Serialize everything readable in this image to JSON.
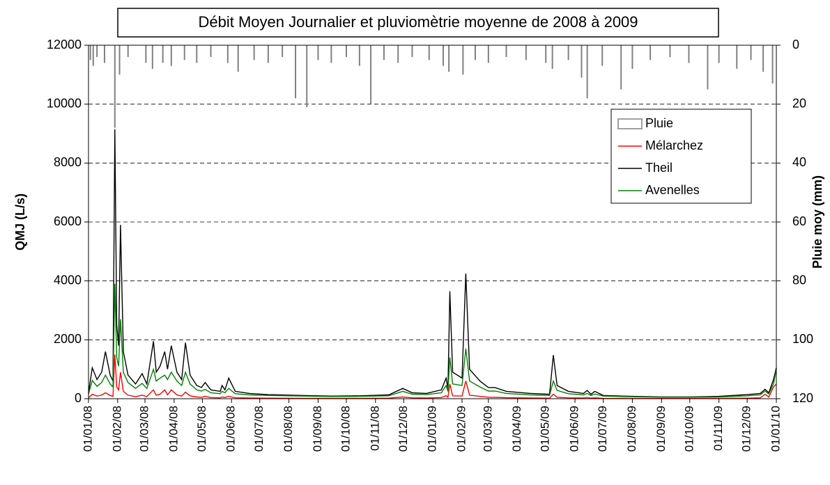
{
  "chart_data": {
    "type": "line",
    "title": "Débit Moyen Journalier et pluviomètrie moyenne de 2008 à 2009",
    "y_label": "QMJ (L/s)",
    "y2_label": "Pluie moy (mm)",
    "xlim": [
      "01/01/08",
      "01/01/10"
    ],
    "xticks": [
      "01/01/08",
      "01/02/08",
      "01/03/08",
      "01/04/08",
      "01/05/08",
      "01/06/08",
      "01/07/08",
      "01/08/08",
      "01/09/08",
      "01/10/08",
      "01/11/08",
      "01/12/08",
      "01/01/09",
      "01/02/09",
      "01/03/09",
      "01/04/09",
      "01/05/09",
      "01/06/09",
      "01/07/09",
      "01/08/09",
      "01/09/09",
      "01/10/09",
      "01/11/09",
      "01/12/09",
      "01/01/10"
    ],
    "ylim": [
      0,
      12000
    ],
    "yticks": [
      0,
      2000,
      4000,
      6000,
      8000,
      10000,
      12000
    ],
    "y2lim": [
      120,
      0
    ],
    "y2ticks": [
      0,
      20,
      40,
      60,
      80,
      100,
      120
    ],
    "grid": true,
    "legend": "upper right",
    "x": [
      "01/01/08",
      "05/01/08",
      "10/01/08",
      "15/01/08",
      "19/01/08",
      "24/01/08",
      "27/01/08",
      "29/01/08",
      "31/01/08",
      "02/02/08",
      "04/02/08",
      "07/02/08",
      "12/02/08",
      "20/02/08",
      "27/02/08",
      "03/03/08",
      "10/03/08",
      "13/03/08",
      "17/03/08",
      "22/03/08",
      "25/03/08",
      "29/03/08",
      "04/04/08",
      "09/04/08",
      "13/04/08",
      "18/04/08",
      "25/04/08",
      "30/04/08",
      "04/05/08",
      "10/05/08",
      "20/05/08",
      "22/05/08",
      "25/05/08",
      "29/05/08",
      "05/06/08",
      "20/06/08",
      "10/07/08",
      "15/08/08",
      "15/09/08",
      "15/10/08",
      "15/11/08",
      "30/11/08",
      "10/12/08",
      "25/12/08",
      "10/01/09",
      "15/01/09",
      "17/01/09",
      "19/01/09",
      "22/01/09",
      "01/02/09",
      "05/02/09",
      "09/02/09",
      "20/02/09",
      "01/03/09",
      "08/03/09",
      "20/03/09",
      "15/04/09",
      "05/05/09",
      "09/05/09",
      "13/05/09",
      "25/05/09",
      "10/06/09",
      "14/06/09",
      "18/06/09",
      "22/06/09",
      "01/07/09",
      "01/08/09",
      "01/09/09",
      "01/10/09",
      "01/11/09",
      "01/12/09",
      "15/12/09",
      "20/12/09",
      "24/12/09",
      "29/12/09",
      "01/01/10"
    ],
    "series": [
      {
        "name": "Pluie",
        "type": "bar",
        "axis": "y2",
        "color": "#808080",
        "x": [
          "03/01/08",
          "06/01/08",
          "10/01/08",
          "18/01/08",
          "29/01/08",
          "03/02/08",
          "12/02/08",
          "02/03/08",
          "09/03/08",
          "20/03/08",
          "29/03/08",
          "12/04/08",
          "25/04/08",
          "10/05/08",
          "28/05/08",
          "08/06/08",
          "25/06/08",
          "10/07/08",
          "25/07/08",
          "08/08/08",
          "20/08/08",
          "01/09/08",
          "15/09/08",
          "01/10/08",
          "15/10/08",
          "27/10/08",
          "10/11/08",
          "25/11/08",
          "10/12/08",
          "28/12/08",
          "12/01/09",
          "18/01/09",
          "02/02/09",
          "15/02/09",
          "01/03/09",
          "20/03/09",
          "10/04/09",
          "01/05/09",
          "08/05/09",
          "25/05/09",
          "08/06/09",
          "14/06/09",
          "30/06/09",
          "20/07/09",
          "01/08/09",
          "20/08/09",
          "10/09/09",
          "30/09/09",
          "20/10/09",
          "01/11/09",
          "20/11/09",
          "05/12/09",
          "18/12/09",
          "28/12/09"
        ],
        "values": [
          5,
          7,
          4,
          6,
          28,
          10,
          4,
          6,
          8,
          6,
          7,
          5,
          6,
          4,
          6,
          9,
          5,
          6,
          4,
          18,
          21,
          5,
          6,
          4,
          7,
          20,
          5,
          6,
          4,
          5,
          7,
          9,
          10,
          5,
          6,
          4,
          5,
          6,
          8,
          5,
          11,
          18,
          7,
          15,
          8,
          5,
          4,
          6,
          15,
          6,
          8,
          5,
          9,
          13
        ]
      },
      {
        "name": "Mélarchez",
        "color": "#ff0000",
        "values": [
          30,
          150,
          90,
          120,
          200,
          110,
          80,
          1500,
          400,
          300,
          900,
          250,
          120,
          70,
          120,
          70,
          300,
          120,
          150,
          300,
          130,
          300,
          130,
          90,
          220,
          100,
          60,
          50,
          80,
          40,
          30,
          60,
          40,
          80,
          30,
          25,
          20,
          15,
          12,
          15,
          20,
          60,
          30,
          25,
          40,
          100,
          50,
          500,
          100,
          90,
          600,
          120,
          80,
          50,
          50,
          35,
          25,
          20,
          150,
          50,
          30,
          25,
          40,
          20,
          30,
          15,
          10,
          8,
          8,
          10,
          20,
          30,
          150,
          60,
          400,
          500
        ]
      },
      {
        "name": "Theil",
        "color": "#000000",
        "values": [
          200,
          1050,
          650,
          900,
          1600,
          800,
          600,
          9150,
          2500,
          1800,
          5900,
          1600,
          800,
          500,
          850,
          500,
          1950,
          900,
          1100,
          1600,
          1000,
          1800,
          900,
          650,
          1900,
          800,
          450,
          380,
          550,
          300,
          250,
          450,
          300,
          700,
          250,
          180,
          140,
          110,
          90,
          100,
          130,
          350,
          200,
          180,
          300,
          700,
          350,
          3650,
          900,
          700,
          4250,
          1000,
          600,
          380,
          380,
          250,
          180,
          150,
          1480,
          450,
          250,
          180,
          280,
          150,
          250,
          110,
          80,
          60,
          60,
          80,
          140,
          180,
          320,
          200,
          650,
          1050
        ]
      },
      {
        "name": "Avenelles",
        "color": "#008000",
        "values": [
          150,
          620,
          420,
          550,
          800,
          500,
          400,
          3900,
          1400,
          1100,
          2700,
          900,
          550,
          350,
          520,
          350,
          1000,
          600,
          700,
          800,
          650,
          900,
          600,
          450,
          900,
          500,
          300,
          260,
          320,
          200,
          170,
          250,
          200,
          350,
          170,
          130,
          110,
          90,
          75,
          80,
          100,
          250,
          150,
          140,
          200,
          450,
          250,
          1400,
          500,
          450,
          1700,
          600,
          400,
          260,
          260,
          180,
          130,
          110,
          600,
          280,
          170,
          130,
          180,
          110,
          160,
          90,
          65,
          50,
          50,
          60,
          100,
          130,
          260,
          160,
          500,
          1000
        ]
      }
    ]
  }
}
